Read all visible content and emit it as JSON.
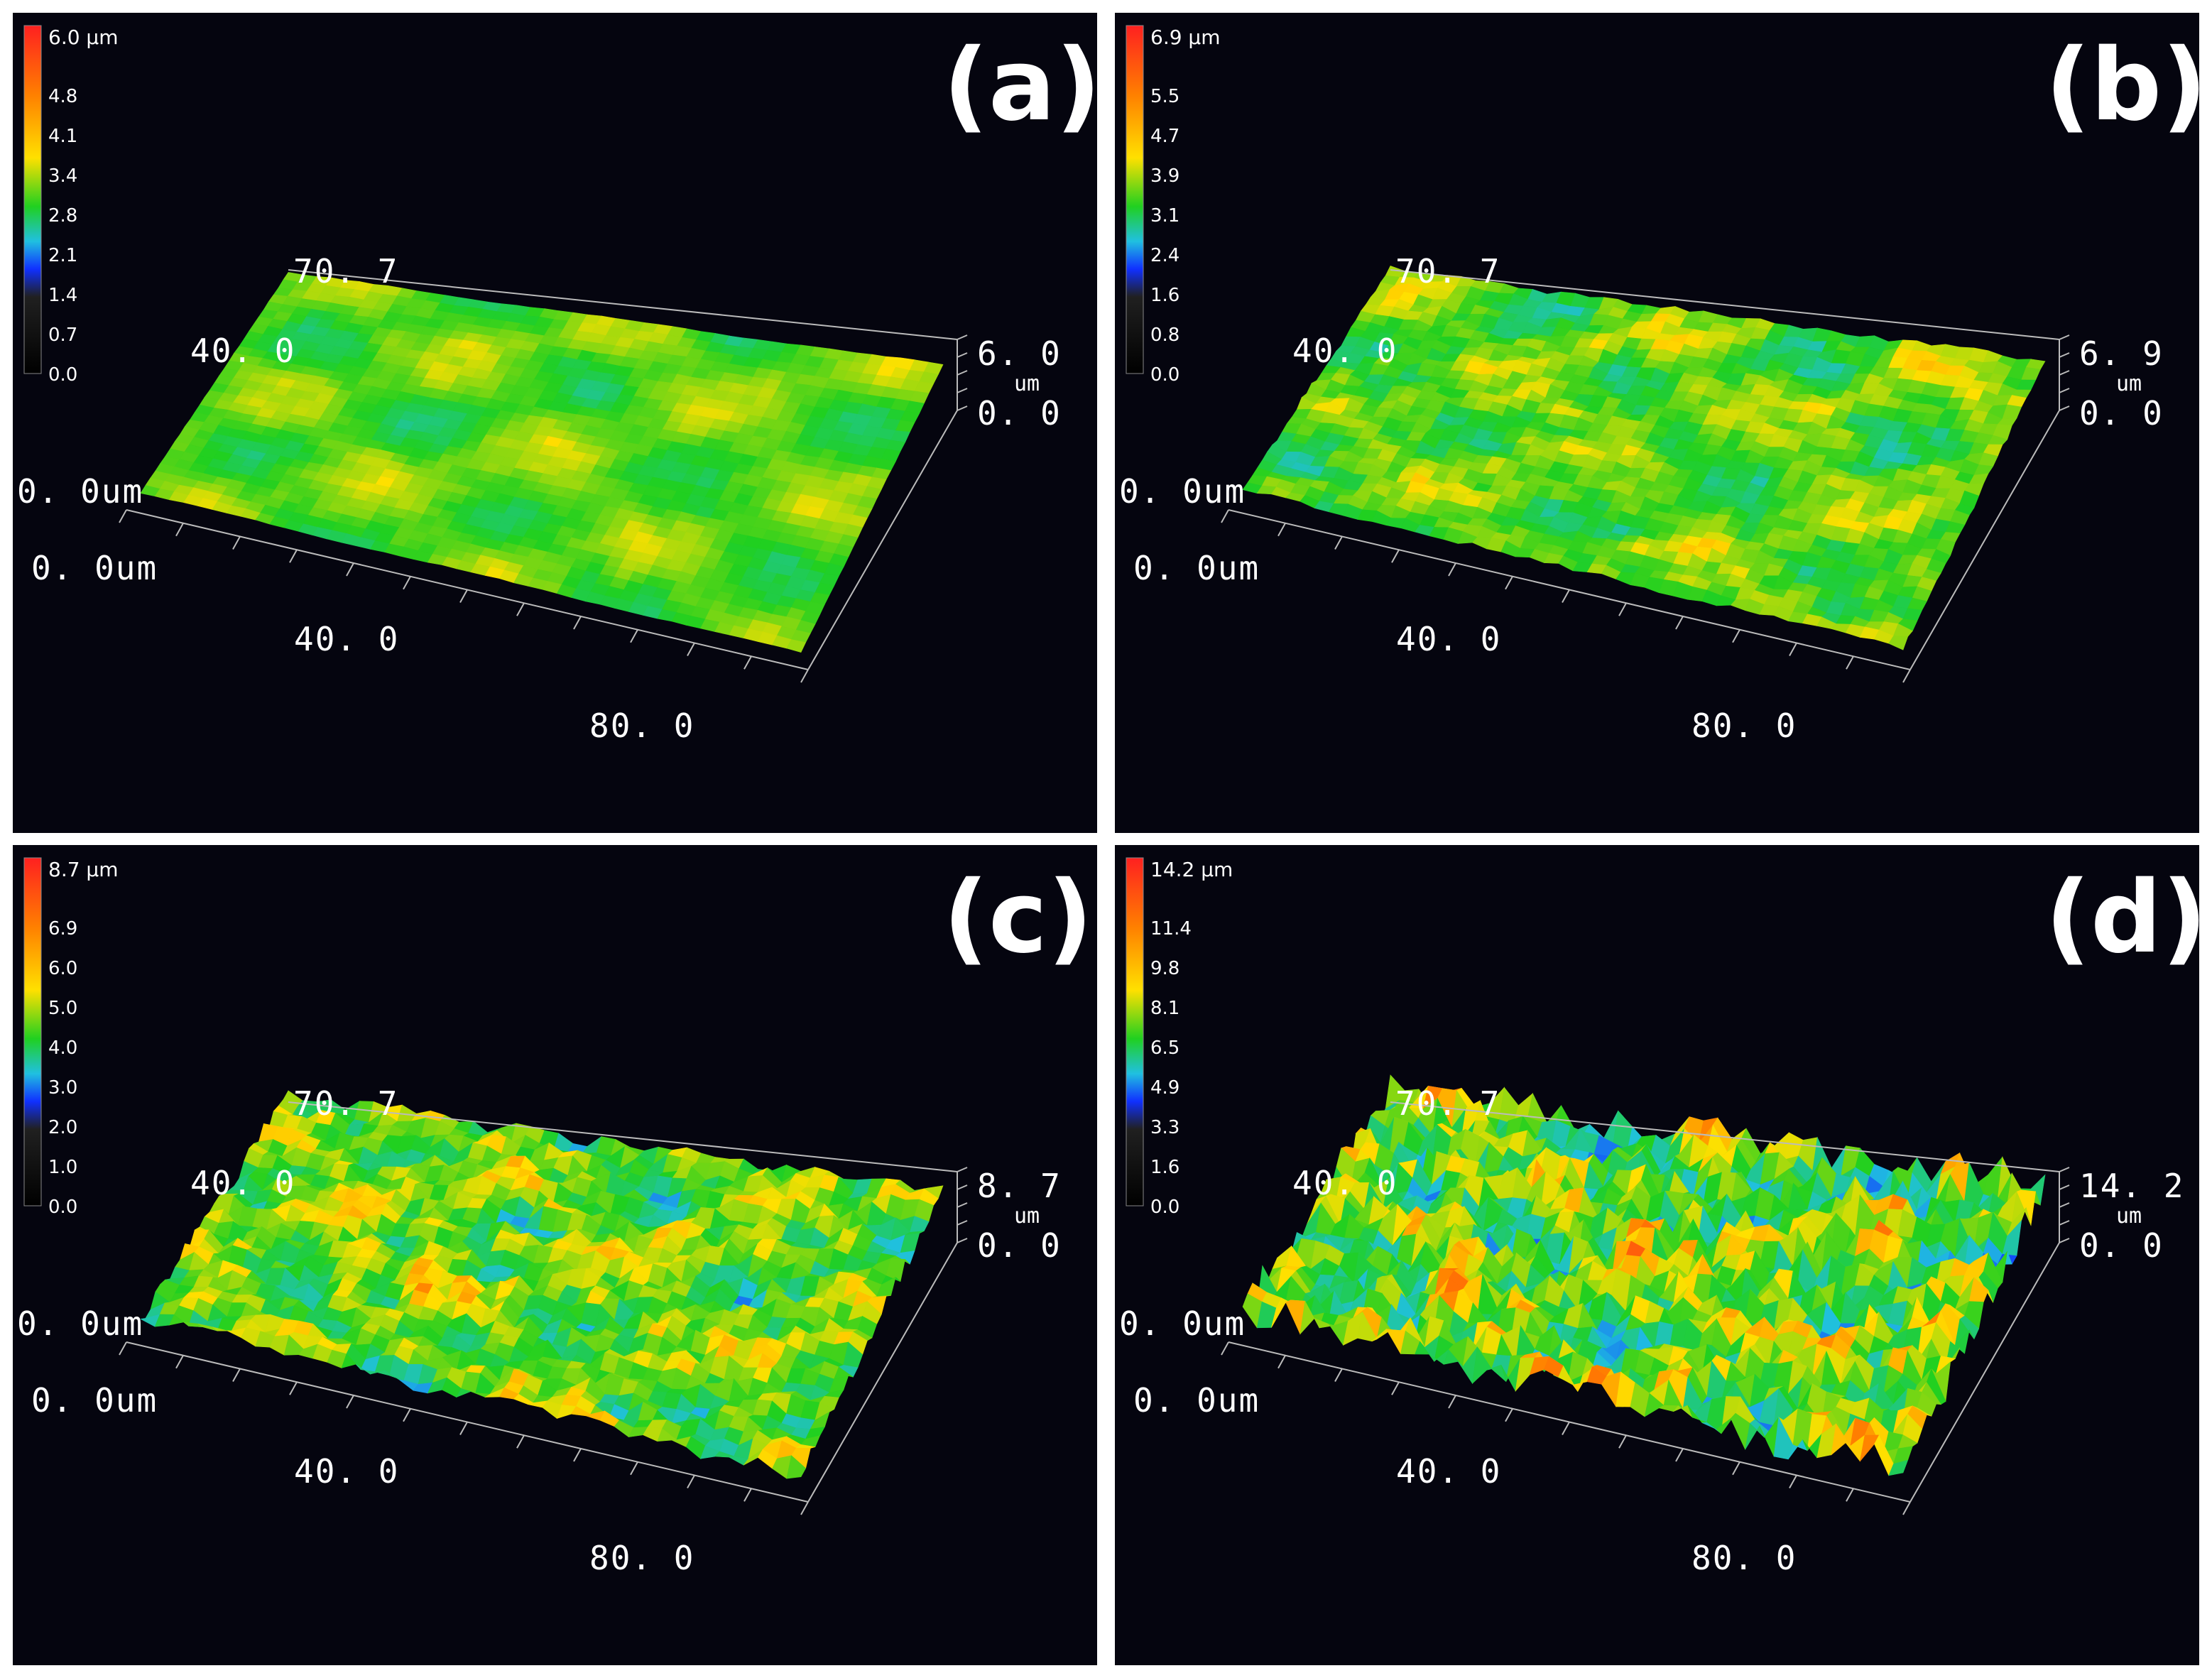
{
  "panels": [
    {
      "letter": "(a)",
      "colorbar": {
        "top": "6.0 µm",
        "ticks": [
          "4.8",
          "4.1",
          "3.4",
          "2.8",
          "2.1",
          "1.4",
          "0.7",
          "0.0"
        ]
      },
      "axes": {
        "y_max": "70. 7",
        "y_mid": "40. 0",
        "origin_y": "0. 0um",
        "origin_x": "0. 0um",
        "x_mid": "40. 0",
        "x_max": "80. 0",
        "z_max": "6. 0",
        "z_unit": "um",
        "z_min": "0. 0"
      },
      "roughness": 0.15
    },
    {
      "letter": "(b)",
      "colorbar": {
        "top": "6.9 µm",
        "ticks": [
          "5.5",
          "4.7",
          "3.9",
          "3.1",
          "2.4",
          "1.6",
          "0.8",
          "0.0"
        ]
      },
      "axes": {
        "y_max": "70. 7",
        "y_mid": "40. 0",
        "origin_y": "0. 0um",
        "origin_x": "0. 0um",
        "x_mid": "40. 0",
        "x_max": "80. 0",
        "z_max": "6. 9",
        "z_unit": "um",
        "z_min": "0. 0"
      },
      "roughness": 0.35
    },
    {
      "letter": "(c)",
      "colorbar": {
        "top": "8.7 µm",
        "ticks": [
          "6.9",
          "6.0",
          "5.0",
          "4.0",
          "3.0",
          "2.0",
          "1.0",
          "0.0"
        ]
      },
      "axes": {
        "y_max": "70. 7",
        "y_mid": "40. 0",
        "origin_y": "0. 0um",
        "origin_x": "0. 0um",
        "x_mid": "40. 0",
        "x_max": "80. 0",
        "z_max": "8. 7",
        "z_unit": "um",
        "z_min": "0. 0"
      },
      "roughness": 0.6
    },
    {
      "letter": "(d)",
      "colorbar": {
        "top": "14.2 µm",
        "ticks": [
          "11.4",
          "9.8",
          "8.1",
          "6.5",
          "4.9",
          "3.3",
          "1.6",
          "0.0"
        ]
      },
      "axes": {
        "y_max": "70. 7",
        "y_mid": "40. 0",
        "origin_y": "0. 0um",
        "origin_x": "0. 0um",
        "x_mid": "40. 0",
        "x_max": "80. 0",
        "z_max": "14. 2",
        "z_unit": "um",
        "z_min": "0. 0"
      },
      "roughness": 0.9
    }
  ],
  "colors": {
    "background": "#05050f",
    "gradient": [
      "#ff2020",
      "#ff8000",
      "#ffe000",
      "#20d020",
      "#20c0e0",
      "#1030ff",
      "#202020"
    ]
  }
}
